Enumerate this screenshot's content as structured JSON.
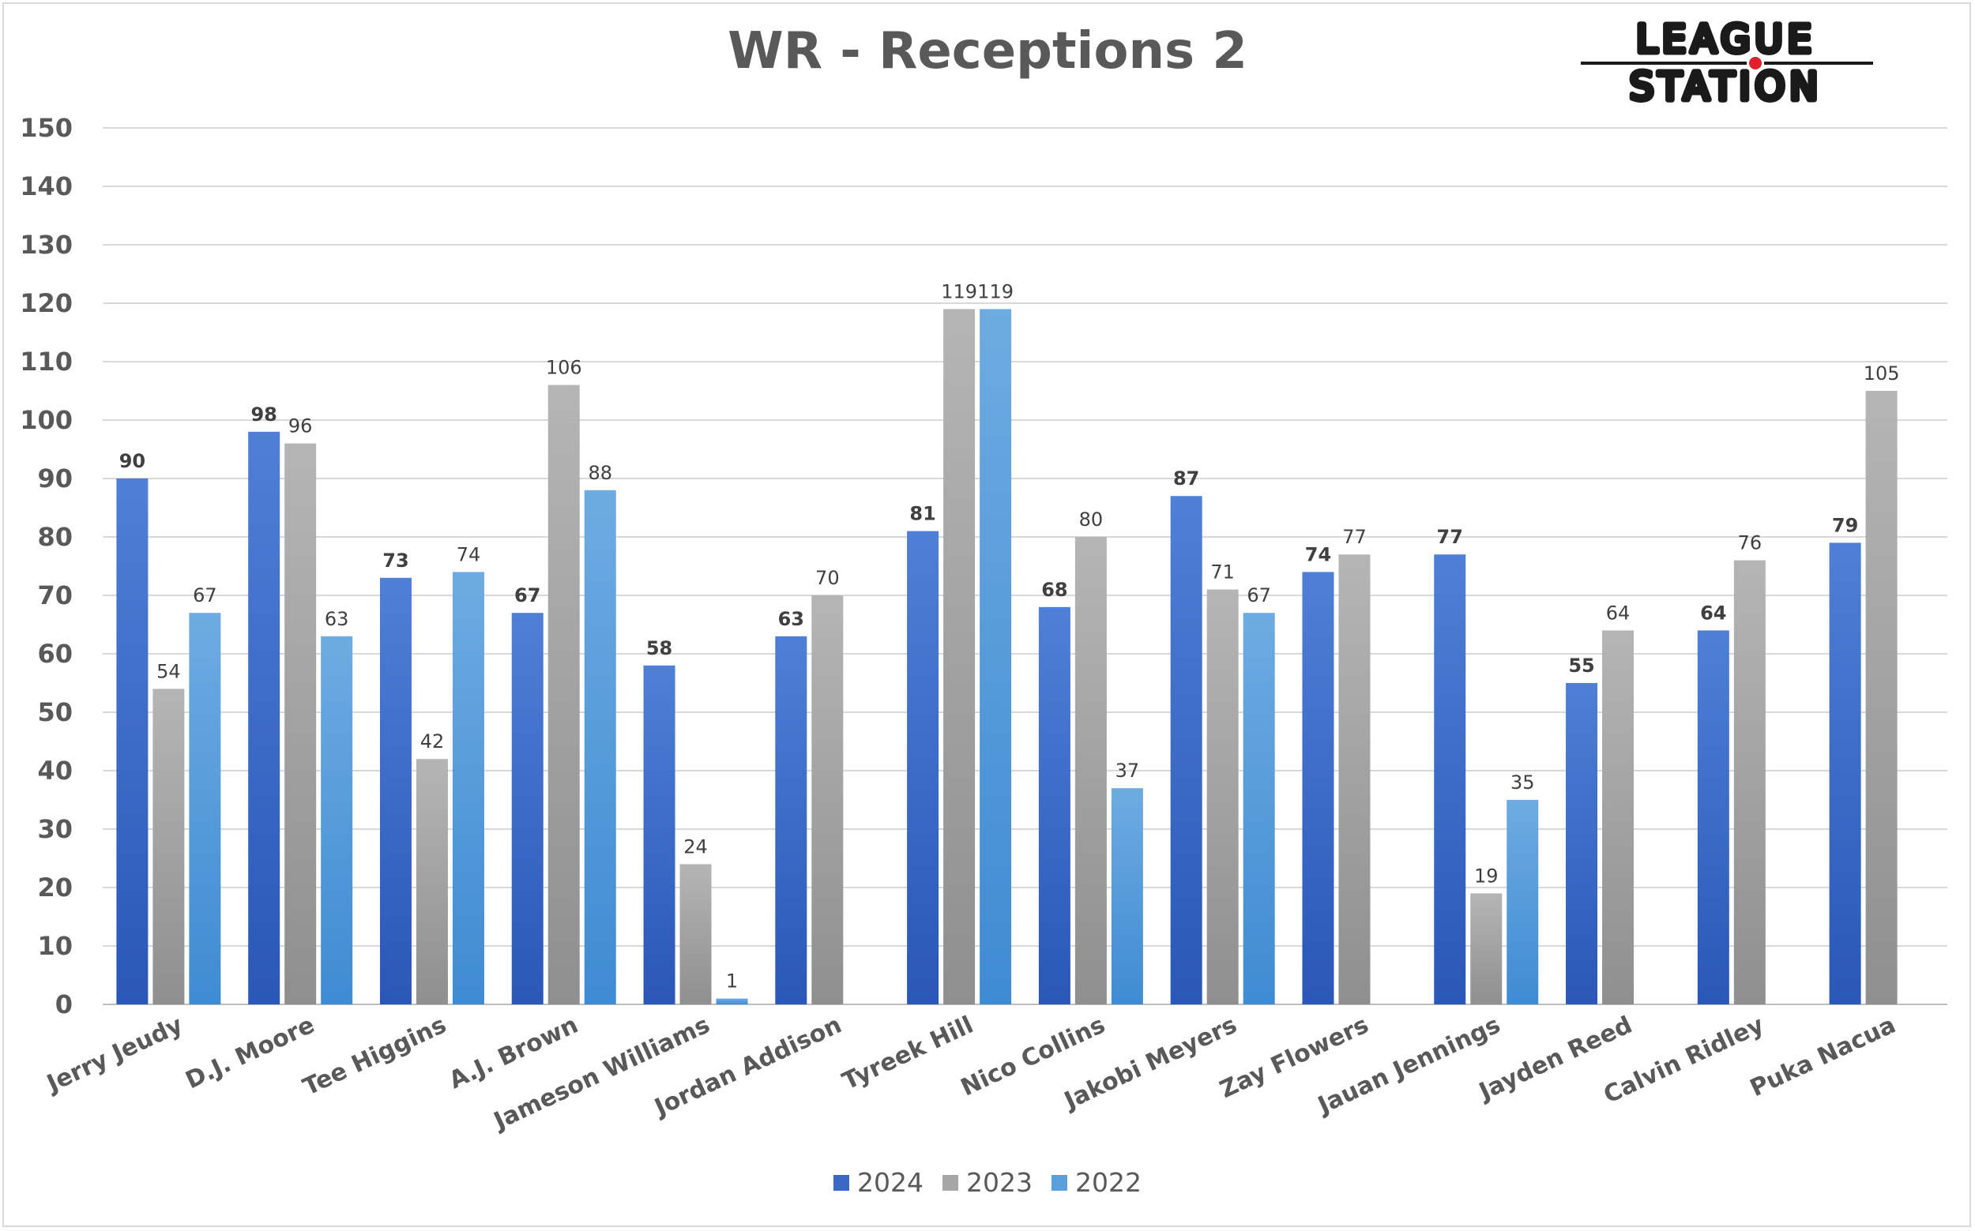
{
  "logo": {
    "line1": "LEAGUE",
    "line2": "STATION"
  },
  "colors": {
    "2024": "#3a68c8",
    "2023": "#a6a6a6",
    "2022": "#5aa0dc",
    "grid": "#d9d9d9",
    "text": "#595959"
  },
  "chart_data": {
    "type": "bar",
    "title": "WR - Receptions 2",
    "xlabel": "",
    "ylabel": "",
    "ylim": [
      0,
      150
    ],
    "yticks": [
      0,
      10,
      20,
      30,
      40,
      50,
      60,
      70,
      80,
      90,
      100,
      110,
      120,
      130,
      140,
      150
    ],
    "grid": true,
    "legend_position": "bottom",
    "categories": [
      "Jerry Jeudy",
      "D.J. Moore",
      "Tee Higgins",
      "A.J. Brown",
      "Jameson Williams",
      "Jordan Addison",
      "Tyreek Hill",
      "Nico Collins",
      "Jakobi Meyers",
      "Zay Flowers",
      "Jauan Jennings",
      "Jayden Reed",
      "Calvin Ridley",
      "Puka Nacua"
    ],
    "series": [
      {
        "name": "2024",
        "values": [
          90,
          98,
          73,
          67,
          58,
          63,
          81,
          68,
          87,
          74,
          77,
          55,
          64,
          79
        ]
      },
      {
        "name": "2023",
        "values": [
          54,
          96,
          42,
          106,
          24,
          70,
          119,
          80,
          71,
          77,
          19,
          64,
          76,
          105
        ]
      },
      {
        "name": "2022",
        "values": [
          67,
          63,
          74,
          88,
          1,
          null,
          119,
          37,
          67,
          null,
          35,
          null,
          null,
          null
        ]
      }
    ]
  }
}
